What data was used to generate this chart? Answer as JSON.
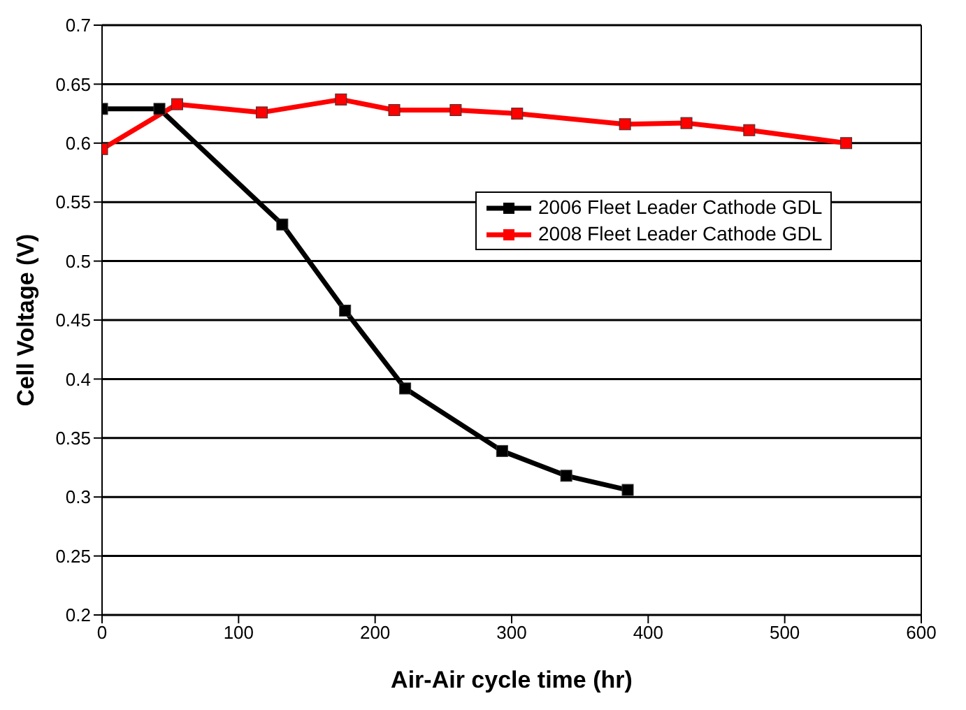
{
  "chart_data": {
    "type": "line",
    "xlabel": "Air-Air cycle time (hr)",
    "ylabel": "Cell Voltage (V)",
    "xlim": [
      0,
      600
    ],
    "xticks": [
      0,
      100,
      200,
      300,
      400,
      500,
      600
    ],
    "ylim": [
      0.2,
      0.7
    ],
    "yticks": [
      0.2,
      0.25,
      0.3,
      0.35,
      0.4,
      0.45,
      0.5,
      0.55,
      0.6,
      0.65,
      0.7
    ],
    "grid": "y",
    "legend": "right",
    "marker": "square",
    "series": [
      {
        "name": "2006 Fleet Leader Cathode GDL",
        "color": "#000000",
        "x": [
          0,
          42,
          132,
          178,
          222,
          293,
          340,
          385
        ],
        "values": [
          0.629,
          0.629,
          0.531,
          0.458,
          0.392,
          0.339,
          0.318,
          0.306
        ]
      },
      {
        "name": "2008 Fleet Leader Cathode GDL",
        "color": "#ff0000",
        "x": [
          0,
          55,
          117,
          175,
          214,
          259,
          304,
          383,
          428,
          474,
          545
        ],
        "values": [
          0.595,
          0.633,
          0.626,
          0.637,
          0.628,
          0.628,
          0.625,
          0.616,
          0.617,
          0.611,
          0.6
        ]
      }
    ]
  }
}
